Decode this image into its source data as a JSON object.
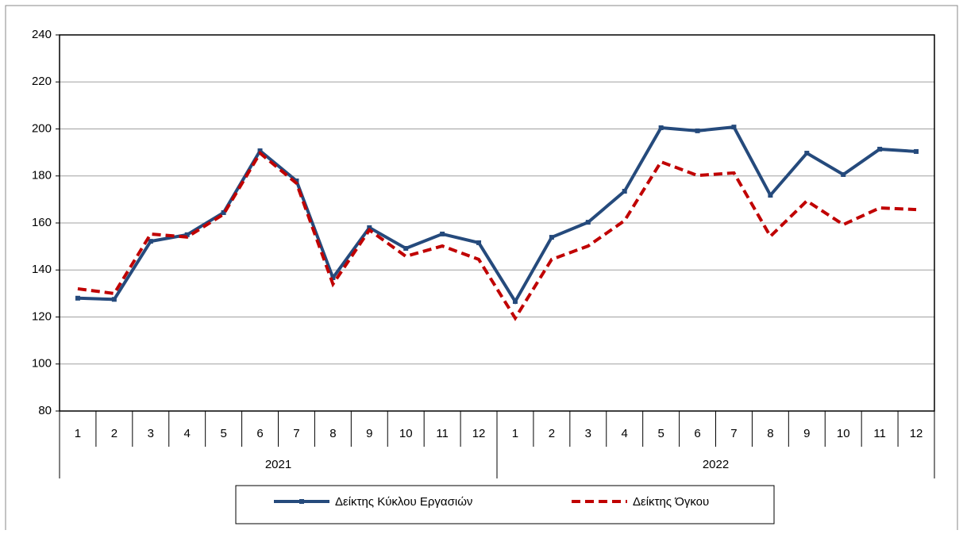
{
  "chart_data": {
    "type": "line",
    "categories": [
      "1",
      "2",
      "3",
      "4",
      "5",
      "6",
      "7",
      "8",
      "9",
      "10",
      "11",
      "12",
      "1",
      "2",
      "3",
      "4",
      "5",
      "6",
      "7",
      "8",
      "9",
      "10",
      "11",
      "12"
    ],
    "years": [
      "2021",
      "2022"
    ],
    "series": [
      {
        "name": "Δείκτης Κύκλου Εργασιών",
        "color": "#254a7c",
        "dashed": false,
        "markers": true,
        "values": [
          128,
          127.5,
          152.2,
          155,
          164.4,
          190.7,
          177.9,
          136.7,
          158,
          149.2,
          155.3,
          151.6,
          126.6,
          153.9,
          160.3,
          173.5,
          200.5,
          199.2,
          200.8,
          171.8,
          189.7,
          180.6,
          191.4,
          190.4
        ]
      },
      {
        "name": "Δείκτης Όγκου",
        "color": "#c00000",
        "dashed": true,
        "markers": false,
        "values": [
          132,
          130,
          155.3,
          154,
          163.7,
          189.7,
          176.9,
          134,
          157,
          145.8,
          150.2,
          144.5,
          119.5,
          144.5,
          150.2,
          161,
          186,
          180.2,
          181.3,
          154.3,
          169.4,
          159.3,
          166.4,
          165.7
        ]
      }
    ],
    "ylim": [
      80,
      240
    ],
    "yticks": [
      80,
      100,
      120,
      140,
      160,
      180,
      200,
      220,
      240
    ],
    "grid": true,
    "legend": "bottom"
  }
}
